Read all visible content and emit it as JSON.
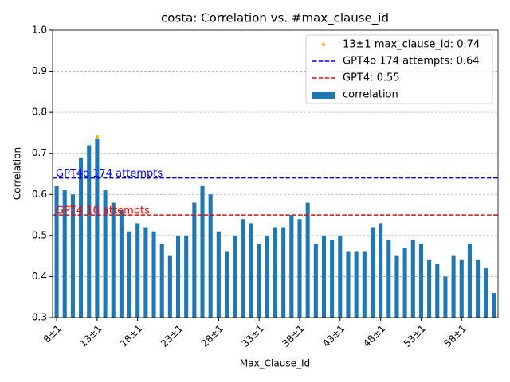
{
  "chart_data": {
    "type": "bar",
    "title": "costa: Correlation vs. #max_clause_id",
    "xlabel": "Max_Clause_Id",
    "ylabel": "Correlation",
    "categories": [
      "8±1",
      null,
      null,
      null,
      null,
      "13±1",
      null,
      null,
      null,
      null,
      "18±1",
      null,
      null,
      null,
      null,
      "23±1",
      null,
      null,
      null,
      null,
      "28±1",
      null,
      null,
      null,
      null,
      "33±1",
      null,
      null,
      null,
      null,
      "38±1",
      null,
      null,
      null,
      null,
      "43±1",
      null,
      null,
      null,
      null,
      "48±1",
      null,
      null,
      null,
      null,
      "53±1",
      null,
      null,
      null,
      null,
      "58±1",
      null,
      null,
      null,
      null
    ],
    "series": [
      {
        "name": "correlation",
        "color": "#1f77b4",
        "values": [
          0.62,
          0.61,
          0.6,
          0.69,
          0.72,
          0.735,
          0.61,
          0.58,
          0.56,
          0.51,
          0.53,
          0.52,
          0.51,
          0.48,
          0.45,
          0.5,
          0.5,
          0.58,
          0.62,
          0.6,
          0.51,
          0.46,
          0.5,
          0.54,
          0.53,
          0.48,
          0.5,
          0.52,
          0.52,
          0.55,
          0.54,
          0.58,
          0.48,
          0.5,
          0.49,
          0.5,
          0.46,
          0.46,
          0.46,
          0.52,
          0.53,
          0.49,
          0.45,
          0.47,
          0.49,
          0.48,
          0.44,
          0.43,
          0.4,
          0.45,
          0.44,
          0.48,
          0.44,
          0.42,
          0.36
        ]
      }
    ],
    "reference_lines": [
      {
        "name": "GPT4o 174 attempts: 0.64",
        "label": "GPT4o 174 attempts",
        "value": 0.64,
        "color": "#0000ff"
      },
      {
        "name": "GPT4: 0.55",
        "label": "GPT4 10 attempts",
        "value": 0.55,
        "color": "#ff0000"
      }
    ],
    "marker": {
      "name": "13±1 max_clause_id: 0.74",
      "x": "13±1",
      "value": 0.74,
      "color": "#ffa500"
    },
    "ylim": [
      0.3,
      1.0
    ],
    "yticks": [
      0.3,
      0.4,
      0.5,
      0.6,
      0.7,
      0.8,
      0.9,
      {
        "value": 1.0,
        "label": "1.0"
      }
    ],
    "grid": true,
    "legend": "upper right"
  }
}
